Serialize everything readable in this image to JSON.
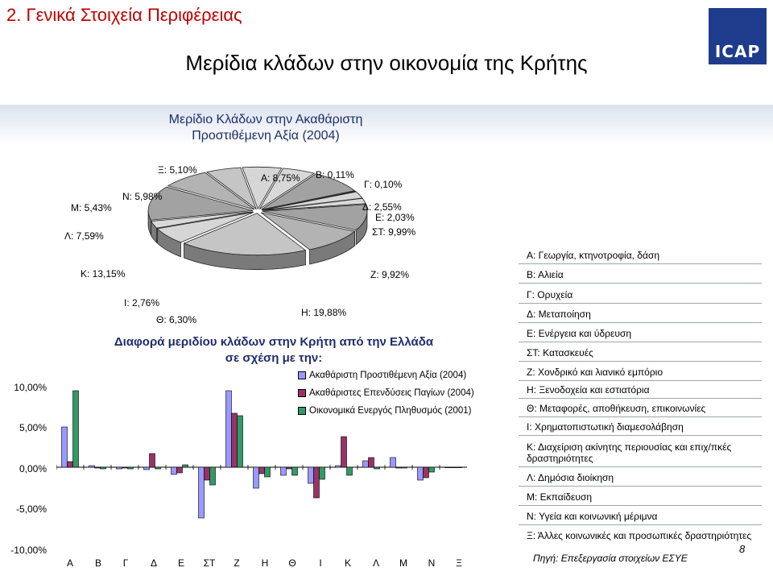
{
  "header": {
    "section_title": "2. Γενικά Στοιχεία Περιφέρειας",
    "logo_text": "ICAP",
    "main_title": "Μερίδια κλάδων στην οικονομία της Κρήτης"
  },
  "pie": {
    "title_line1": "Μερίδιο Κλάδων στην Ακαθάριστη",
    "title_line2": "Προστιθέμενη Αξία (2004)",
    "labels": {
      "a": "Α: 8,75%",
      "b": "Β: 0,11%",
      "g": "Γ: 0,10%",
      "d": "Δ: 2,55%",
      "e": "Ε: 2,03%",
      "st": "ΣΤ: 9,99%",
      "z": "Ζ: 9,92%",
      "h": "Η: 19,88%",
      "th": "Θ: 6,30%",
      "i": "Ι: 2,76%",
      "k": "Κ: 13,15%",
      "l": "Λ: 7,59%",
      "m": "Μ: 5,43%",
      "n": "Ν: 5,98%",
      "x": "Ξ: 5,10%"
    }
  },
  "bar": {
    "title_line1": "Διαφορά μεριδίου κλάδων στην Κρήτη από την Ελλάδα",
    "title_line2": "σε σχέση με την:",
    "y_ticks": [
      "10,00%",
      "5,00%",
      "0,00%",
      "-5,00%",
      "-10,00%"
    ]
  },
  "chart_data": [
    {
      "type": "pie",
      "title": "Μερίδιο Κλάδων στην Ακαθάριστη Προστιθέμενη Αξία (2004)",
      "categories": [
        "Α",
        "Β",
        "Γ",
        "Δ",
        "Ε",
        "ΣΤ",
        "Ζ",
        "Η",
        "Θ",
        "Ι",
        "Κ",
        "Λ",
        "Μ",
        "Ν",
        "Ξ"
      ],
      "values": [
        8.75,
        0.11,
        0.1,
        2.55,
        2.03,
        9.99,
        9.92,
        19.88,
        6.3,
        2.76,
        13.15,
        7.59,
        5.43,
        5.98,
        5.1
      ],
      "colors": [
        "#9999ff",
        "#993366",
        "#ffffcc",
        "#ccffff",
        "#660066",
        "#ff8080",
        "#0066cc",
        "#ccccff",
        "#000080",
        "#ff00ff",
        "#ffff00",
        "#00ffff",
        "#800080",
        "#800000",
        "#008080"
      ]
    },
    {
      "type": "bar",
      "title": "Διαφορά μεριδίου κλάδων στην Κρήτη από την Ελλάδα σε σχέση με την:",
      "categories": [
        "Α",
        "Β",
        "Γ",
        "Δ",
        "Ε",
        "ΣΤ",
        "Ζ",
        "Η",
        "Θ",
        "Ι",
        "Κ",
        "Λ",
        "Μ",
        "Ν",
        "Ξ"
      ],
      "ylim": [
        -10,
        10
      ],
      "y_ticks": [
        "10,00%",
        "5,00%",
        "0,00%",
        "-5,00%",
        "-10,00%"
      ],
      "legend": "right",
      "series": [
        {
          "name": "Ακαθάριστη Προστιθέμενη Αξία (2004)",
          "color": "#9999ff",
          "values": [
            5.0,
            0.2,
            -0.2,
            -0.3,
            -0.9,
            -6.3,
            9.5,
            -2.6,
            -1.0,
            -2.0,
            0.2,
            0.8,
            1.2,
            -1.6,
            0
          ]
        },
        {
          "name": "Ακαθάριστες Επενδύσεις Παγίων (2004)",
          "color": "#993366",
          "values": [
            0.7,
            -0.1,
            -0.1,
            1.7,
            -0.7,
            -1.6,
            6.7,
            -0.8,
            -0.2,
            -3.8,
            3.8,
            1.2,
            -0.1,
            -1.3,
            0
          ]
        },
        {
          "name": "Οικονομικά Ενεργός Πληθυσμός (2001)",
          "color": "#339966",
          "values": [
            9.5,
            -0.2,
            -0.2,
            -0.2,
            0.3,
            -2.2,
            6.4,
            -1.2,
            -1.0,
            -1.5,
            -1.0,
            -0.2,
            -0.1,
            -0.6,
            0
          ]
        }
      ]
    }
  ],
  "key": {
    "items": [
      "Α: Γεωργία, κτηνοτροφία, δάση",
      "Β: Αλιεία",
      "Γ: Ορυχεία",
      "Δ: Μεταποίηση",
      "Ε: Ενέργεια και ύδρευση",
      "ΣΤ: Κατασκευές",
      "Ζ: Χονδρικό και λιανικό εμπόριο",
      "Η: Ξενοδοχεία και εστιατόρια",
      "Θ: Μεταφορές, αποθήκευση, επικοινωνίες",
      "Ι: Χρηματοπιστωτική διαμεσολάβηση",
      "Κ: Διαχείριση ακίνητης περιουσίας και επιχ/πκές δραστηριότητες",
      "Λ: Δημόσια διοίκηση",
      "Μ: Εκπαίδευση",
      "Ν: Υγεία και κοινωνική μέριμνα",
      "Ξ: Άλλες κοινωνικές και προσωπικές δραστηριότητες"
    ]
  },
  "footer": {
    "source": "Πηγή: Επεξεργασία στοιχείων ΕΣΥΕ",
    "page_number": "8"
  }
}
